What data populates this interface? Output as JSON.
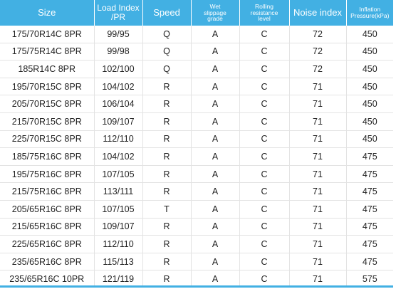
{
  "table": {
    "headers": {
      "size": "Size",
      "load_index": [
        "Load Index",
        "/PR"
      ],
      "speed": "Speed",
      "wet": [
        "Wet",
        "slippage",
        "grade"
      ],
      "rolling": [
        "Rolling",
        "resistance",
        "level"
      ],
      "noise": "Noise index",
      "inflation": [
        "Inflation",
        "Pressure(kPa)"
      ]
    },
    "rows": [
      [
        "175/70R14C 8PR",
        "99/95",
        "Q",
        "A",
        "C",
        "72",
        "450"
      ],
      [
        "175/75R14C 8PR",
        "99/98",
        "Q",
        "A",
        "C",
        "72",
        "450"
      ],
      [
        "185R14C 8PR",
        "102/100",
        "Q",
        "A",
        "C",
        "72",
        "450"
      ],
      [
        "195/70R15C 8PR",
        "104/102",
        "R",
        "A",
        "C",
        "71",
        "450"
      ],
      [
        "205/70R15C 8PR",
        "106/104",
        "R",
        "A",
        "C",
        "71",
        "450"
      ],
      [
        "215/70R15C 8PR",
        "109/107",
        "R",
        "A",
        "C",
        "71",
        "450"
      ],
      [
        "225/70R15C 8PR",
        "112/110",
        "R",
        "A",
        "C",
        "71",
        "450"
      ],
      [
        "185/75R16C 8PR",
        "104/102",
        "R",
        "A",
        "C",
        "71",
        "475"
      ],
      [
        "195/75R16C 8PR",
        "107/105",
        "R",
        "A",
        "C",
        "71",
        "475"
      ],
      [
        "215/75R16C 8PR",
        "113/111",
        "R",
        "A",
        "C",
        "71",
        "475"
      ],
      [
        "205/65R16C 8PR",
        "107/105",
        "T",
        "A",
        "C",
        "71",
        "475"
      ],
      [
        "215/65R16C 8PR",
        "109/107",
        "R",
        "A",
        "C",
        "71",
        "475"
      ],
      [
        "225/65R16C 8PR",
        "112/110",
        "R",
        "A",
        "C",
        "71",
        "475"
      ],
      [
        "235/65R16C 8PR",
        "115/113",
        "R",
        "A",
        "C",
        "71",
        "475"
      ],
      [
        "235/65R16C 10PR",
        "121/119",
        "R",
        "A",
        "C",
        "71",
        "575"
      ]
    ]
  },
  "colors": {
    "header_bg": "#42b0e3",
    "header_text": "#ffffff",
    "cell_text": "#222222",
    "grid_line": "#e3e3e3"
  }
}
